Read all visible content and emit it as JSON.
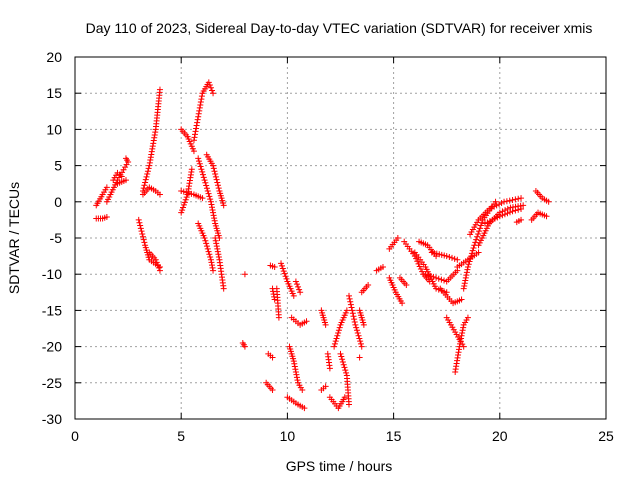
{
  "chart_data": {
    "type": "scatter",
    "title": "Day 110 of 2023, Sidereal Day-to-day VTEC variation (SDTVAR) for receiver xmis",
    "xlabel": "GPS time / hours",
    "ylabel": "SDTVAR / TECUs",
    "xlim": [
      0,
      25
    ],
    "ylim": [
      -30,
      20
    ],
    "xticks": [
      "0",
      "5",
      "10",
      "15",
      "20",
      "25"
    ],
    "yticks": [
      "20",
      "15",
      "10",
      "5",
      "0",
      "-5",
      "-10",
      "-15",
      "-20",
      "-25",
      "-30"
    ],
    "grid": true,
    "marker": "+",
    "marker_color": "#ff0000",
    "segments": [
      [
        [
          1.0,
          -0.5
        ],
        [
          1.3,
          1.0
        ],
        [
          1.5,
          2.0
        ]
      ],
      [
        [
          1.0,
          -2.3
        ],
        [
          1.3,
          -2.3
        ],
        [
          1.5,
          -2.1
        ]
      ],
      [
        [
          1.5,
          0.0
        ],
        [
          2.0,
          3.0
        ],
        [
          2.5,
          5.5
        ],
        [
          2.4,
          6.0
        ]
      ],
      [
        [
          1.8,
          3.0
        ],
        [
          2.0,
          4.0
        ],
        [
          2.2,
          3.5
        ]
      ],
      [
        [
          2.0,
          2.5
        ],
        [
          2.4,
          3.0
        ]
      ],
      [
        [
          3.2,
          1.5
        ],
        [
          3.5,
          5.0
        ],
        [
          3.8,
          10.0
        ],
        [
          4.0,
          15.5
        ]
      ],
      [
        [
          3.2,
          1.0
        ],
        [
          3.5,
          2.0
        ],
        [
          3.8,
          1.5
        ],
        [
          4.0,
          1.0
        ]
      ],
      [
        [
          3.0,
          -2.5
        ],
        [
          3.3,
          -6.0
        ],
        [
          3.5,
          -8.0
        ],
        [
          4.0,
          -9.0
        ]
      ],
      [
        [
          3.5,
          -7.0
        ],
        [
          3.8,
          -8.0
        ],
        [
          4.0,
          -9.5
        ]
      ],
      [
        [
          5.0,
          10.0
        ],
        [
          5.3,
          9.0
        ],
        [
          5.6,
          7.0
        ]
      ],
      [
        [
          5.6,
          8.5
        ],
        [
          6.0,
          15.0
        ],
        [
          6.3,
          16.5
        ],
        [
          6.5,
          15.0
        ]
      ],
      [
        [
          5.8,
          6.0
        ],
        [
          6.1,
          3.0
        ],
        [
          6.4,
          0.0
        ],
        [
          6.6,
          -3.0
        ],
        [
          6.8,
          -5.0
        ]
      ],
      [
        [
          5.0,
          -1.5
        ],
        [
          5.3,
          1.0
        ],
        [
          5.5,
          4.5
        ]
      ],
      [
        [
          5.0,
          1.5
        ],
        [
          5.6,
          1.0
        ],
        [
          6.0,
          0.5
        ]
      ],
      [
        [
          5.8,
          -3.0
        ],
        [
          6.1,
          -5.0
        ],
        [
          6.4,
          -8.0
        ],
        [
          6.5,
          -9.5
        ]
      ],
      [
        [
          6.2,
          6.5
        ],
        [
          6.5,
          5.0
        ],
        [
          6.8,
          1.5
        ],
        [
          7.0,
          -0.5
        ]
      ],
      [
        [
          6.6,
          -5.0
        ],
        [
          6.8,
          -8.0
        ],
        [
          7.0,
          -12.0
        ]
      ],
      [
        [
          7.9,
          -19.5
        ],
        [
          8.0,
          -20.0
        ]
      ],
      [
        [
          8.0,
          -10.0
        ]
      ],
      [
        [
          9.2,
          -8.8
        ],
        [
          9.4,
          -9.0
        ]
      ],
      [
        [
          9.3,
          -12.0
        ],
        [
          9.4,
          -13.5
        ]
      ],
      [
        [
          9.1,
          -21.0
        ],
        [
          9.3,
          -21.5
        ]
      ],
      [
        [
          9.0,
          -25.0
        ],
        [
          9.3,
          -26.0
        ]
      ],
      [
        [
          9.5,
          -12.0
        ],
        [
          9.6,
          -16.0
        ]
      ],
      [
        [
          9.7,
          -8.5
        ],
        [
          10.0,
          -11.0
        ],
        [
          10.3,
          -13.0
        ]
      ],
      [
        [
          10.1,
          -20.0
        ],
        [
          10.3,
          -22.0
        ],
        [
          10.5,
          -25.0
        ],
        [
          10.7,
          -26.0
        ]
      ],
      [
        [
          10.0,
          -27.0
        ],
        [
          10.5,
          -28.0
        ],
        [
          10.8,
          -28.5
        ]
      ],
      [
        [
          10.2,
          -16.0
        ],
        [
          10.6,
          -17.0
        ],
        [
          10.9,
          -16.5
        ]
      ],
      [
        [
          10.4,
          -11.0
        ],
        [
          10.6,
          -12.5
        ]
      ],
      [
        [
          11.6,
          -26.0
        ],
        [
          11.8,
          -25.5
        ]
      ],
      [
        [
          11.6,
          -15.0
        ],
        [
          11.8,
          -17.0
        ]
      ],
      [
        [
          11.9,
          -21.0
        ],
        [
          12.0,
          -23.0
        ]
      ],
      [
        [
          12.0,
          -27.0
        ],
        [
          12.4,
          -28.5
        ],
        [
          12.7,
          -27.0
        ]
      ],
      [
        [
          12.2,
          -20.0
        ],
        [
          12.5,
          -17.0
        ],
        [
          12.8,
          -15.0
        ]
      ],
      [
        [
          12.5,
          -21.0
        ],
        [
          12.8,
          -24.0
        ],
        [
          12.9,
          -28.0
        ]
      ],
      [
        [
          12.9,
          -13.0
        ],
        [
          13.2,
          -17.0
        ],
        [
          13.5,
          -20.0
        ]
      ],
      [
        [
          13.4,
          -21.5
        ]
      ],
      [
        [
          13.5,
          -12.5
        ],
        [
          13.8,
          -11.5
        ]
      ],
      [
        [
          13.4,
          -15.0
        ],
        [
          13.6,
          -17.0
        ]
      ],
      [
        [
          14.2,
          -9.5
        ],
        [
          14.5,
          -9.0
        ]
      ],
      [
        [
          14.8,
          -6.5
        ],
        [
          15.2,
          -5.0
        ]
      ],
      [
        [
          15.3,
          -10.5
        ],
        [
          15.6,
          -11.5
        ]
      ],
      [
        [
          14.8,
          -10.5
        ],
        [
          15.1,
          -12.5
        ],
        [
          15.4,
          -14.0
        ]
      ],
      [
        [
          15.5,
          -5.5
        ],
        [
          16.0,
          -7.5
        ],
        [
          16.4,
          -10.0
        ],
        [
          16.7,
          -11.0
        ]
      ],
      [
        [
          16.0,
          -7.0
        ],
        [
          16.5,
          -9.0
        ],
        [
          17.0,
          -12.0
        ],
        [
          17.5,
          -12.5
        ]
      ],
      [
        [
          16.2,
          -5.5
        ],
        [
          16.6,
          -6.0
        ],
        [
          17.0,
          -7.5
        ]
      ],
      [
        [
          16.5,
          -10.0
        ],
        [
          17.0,
          -10.5
        ],
        [
          17.5,
          -11.0
        ],
        [
          18.0,
          -9.5
        ]
      ],
      [
        [
          16.8,
          -7.0
        ],
        [
          17.5,
          -7.5
        ],
        [
          18.0,
          -8.0
        ]
      ],
      [
        [
          17.2,
          -12.0
        ],
        [
          17.8,
          -14.0
        ],
        [
          18.2,
          -13.5
        ]
      ],
      [
        [
          17.5,
          -16.0
        ],
        [
          17.9,
          -18.0
        ],
        [
          18.3,
          -20.0
        ]
      ],
      [
        [
          17.9,
          -23.5
        ],
        [
          18.1,
          -20.0
        ],
        [
          18.3,
          -17.0
        ],
        [
          18.5,
          -16.0
        ]
      ],
      [
        [
          18.0,
          -9.0
        ],
        [
          18.5,
          -8.0
        ],
        [
          19.0,
          -7.0
        ]
      ],
      [
        [
          18.3,
          -12.0
        ],
        [
          18.5,
          -9.0
        ],
        [
          18.8,
          -6.0
        ],
        [
          19.2,
          -2.5
        ],
        [
          19.8,
          0.0
        ]
      ],
      [
        [
          18.6,
          -4.5
        ],
        [
          19.0,
          -2.5
        ],
        [
          19.5,
          -1.0
        ],
        [
          20.2,
          0.0
        ],
        [
          21.0,
          0.5
        ]
      ],
      [
        [
          19.0,
          -6.0
        ],
        [
          19.5,
          -3.0
        ],
        [
          20.0,
          -1.5
        ],
        [
          20.5,
          -0.8
        ],
        [
          21.1,
          -0.5
        ]
      ],
      [
        [
          19.3,
          -3.0
        ],
        [
          20.0,
          -2.0
        ],
        [
          20.6,
          -1.3
        ],
        [
          21.0,
          -1.0
        ]
      ],
      [
        [
          20.8,
          -2.8
        ],
        [
          21.0,
          -2.5
        ]
      ],
      [
        [
          21.5,
          -2.5
        ],
        [
          21.8,
          -1.5
        ],
        [
          22.2,
          -2.0
        ]
      ],
      [
        [
          21.7,
          1.5
        ],
        [
          22.0,
          0.5
        ],
        [
          22.3,
          0.0
        ]
      ]
    ]
  }
}
